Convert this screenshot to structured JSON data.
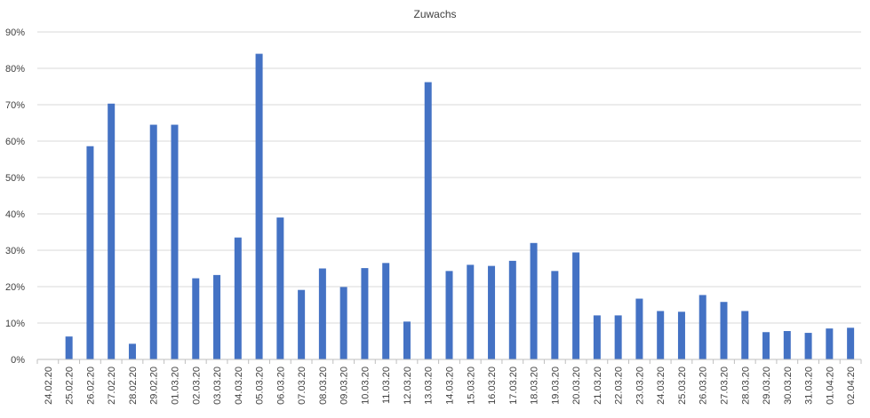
{
  "chart_data": {
    "type": "bar",
    "title": "Zuwachs",
    "xlabel": "",
    "ylabel": "",
    "ylim": [
      0,
      0.9
    ],
    "yticks": [
      "0%",
      "10%",
      "20%",
      "30%",
      "40%",
      "50%",
      "60%",
      "70%",
      "80%",
      "90%"
    ],
    "ytick_values": [
      0,
      0.1,
      0.2,
      0.3,
      0.4,
      0.5,
      0.6,
      0.7,
      0.8,
      0.9
    ],
    "grid": true,
    "legend": "none",
    "bar_color": "#4472c4",
    "categories": [
      "24.02.20",
      "25.02.20",
      "26.02.20",
      "27.02.20",
      "28.02.20",
      "29.02.20",
      "01.03.20",
      "02.03.20",
      "03.03.20",
      "04.03.20",
      "05.03.20",
      "06.03.20",
      "07.03.20",
      "08.03.20",
      "09.03.20",
      "10.03.20",
      "11.03.20",
      "12.03.20",
      "13.03.20",
      "14.03.20",
      "15.03.20",
      "16.03.20",
      "17.03.20",
      "18.03.20",
      "19.03.20",
      "20.03.20",
      "21.03.20",
      "22.03.20",
      "23.03.20",
      "24.03.20",
      "25.03.20",
      "26.03.20",
      "27.03.20",
      "28.03.20",
      "29.03.20",
      "30.03.20",
      "31.03.20",
      "01.04.20",
      "02.04.20"
    ],
    "values": [
      0.0,
      0.063,
      0.586,
      0.703,
      0.043,
      0.645,
      0.645,
      0.223,
      0.232,
      0.335,
      0.84,
      0.39,
      0.191,
      0.25,
      0.199,
      0.251,
      0.265,
      0.104,
      0.762,
      0.243,
      0.26,
      0.257,
      0.271,
      0.32,
      0.243,
      0.294,
      0.121,
      0.121,
      0.167,
      0.133,
      0.131,
      0.177,
      0.158,
      0.133,
      0.075,
      0.078,
      0.073,
      0.085,
      0.087
    ]
  }
}
